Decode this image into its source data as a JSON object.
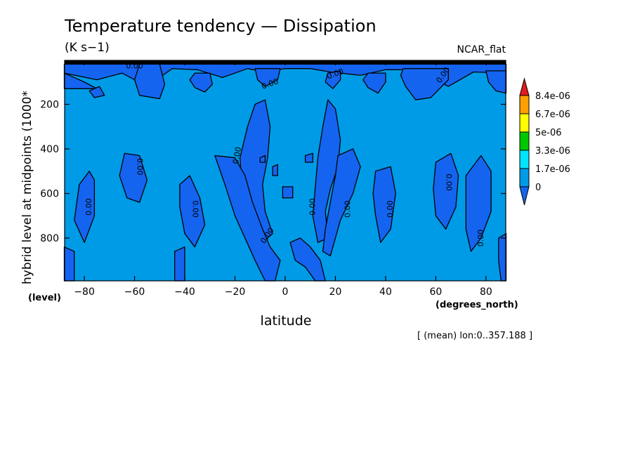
{
  "chart_data": {
    "type": "heatmap",
    "title": "Temperature tendency — Dissipation",
    "units": "(K s−1)",
    "subtitle_right": "NCAR_flat",
    "xlabel": "latitude",
    "xunits": "(degrees_north)",
    "ylabel": "hybrid level at midpoints (1000*",
    "yunits": "(level)",
    "xlim": [
      -87.86,
      87.86
    ],
    "ylim": [
      992,
      3
    ],
    "xticks": [
      -80,
      -60,
      -40,
      -20,
      0,
      20,
      40,
      60,
      80
    ],
    "xtick_labels": [
      "−80",
      "−60",
      "−40",
      "−20",
      "0",
      "20",
      "40",
      "60",
      "80"
    ],
    "yticks": [
      200,
      400,
      600,
      800
    ],
    "ytick_labels": [
      "200",
      "400",
      "600",
      "800"
    ],
    "footnote": "[ (mean) lon:0..357.188 ]",
    "colorbar": {
      "levels": [
        "8.4e-06",
        "6.7e-06",
        "5e-06",
        "3.3e-06",
        "1.7e-06",
        "0"
      ],
      "colors": [
        "#e31a1c",
        "#ff9f00",
        "#ffff00",
        "#00c800",
        "#00e5ff",
        "#009be6",
        "#1464f0"
      ]
    },
    "contour_labels": [
      {
        "text": "0.00",
        "lat": -60,
        "lev": 30,
        "rot": 0
      },
      {
        "text": "0.00",
        "lat": 20,
        "lev": 65,
        "rot": -20
      },
      {
        "text": "0.00",
        "lat": 63,
        "lev": 70,
        "rot": -55
      },
      {
        "text": "0.00",
        "lat": -6,
        "lev": 110,
        "rot": -20
      },
      {
        "text": "0.00",
        "lat": -19,
        "lev": 430,
        "rot": -80
      },
      {
        "text": "0.00",
        "lat": -58,
        "lev": 480,
        "rot": 90
      },
      {
        "text": "0.00",
        "lat": 65,
        "lev": 550,
        "rot": 90
      },
      {
        "text": "0.00",
        "lat": -78,
        "lev": 660,
        "rot": -90
      },
      {
        "text": "0.00",
        "lat": -36,
        "lev": 670,
        "rot": 90
      },
      {
        "text": "0.00",
        "lat": 11,
        "lev": 660,
        "rot": -90
      },
      {
        "text": "0.00",
        "lat": 25,
        "lev": 670,
        "rot": -90
      },
      {
        "text": "0.00",
        "lat": 42,
        "lev": 670,
        "rot": -90
      },
      {
        "text": "0.00",
        "lat": -7,
        "lev": 790,
        "rot": -55
      },
      {
        "text": "0.00",
        "lat": 78,
        "lev": 800,
        "rot": -90
      }
    ],
    "regions": [
      {
        "level": "lt0",
        "pts": [
          [
            -88,
            20
          ],
          [
            88,
            20
          ],
          [
            88,
            60
          ],
          [
            75,
            55
          ],
          [
            65,
            120
          ],
          [
            60,
            90
          ],
          [
            50,
            45
          ],
          [
            40,
            45
          ],
          [
            30,
            70
          ],
          [
            18,
            55
          ],
          [
            10,
            40
          ],
          [
            0,
            40
          ],
          [
            -8,
            55
          ],
          [
            -15,
            40
          ],
          [
            -25,
            80
          ],
          [
            -35,
            45
          ],
          [
            -45,
            40
          ],
          [
            -55,
            120
          ],
          [
            -65,
            60
          ],
          [
            -75,
            90
          ],
          [
            -88,
            60
          ]
        ]
      },
      {
        "level": "lt0",
        "pts": [
          [
            -88,
            60
          ],
          [
            -80,
            100
          ],
          [
            -75,
            130
          ],
          [
            -88,
            130
          ]
        ]
      },
      {
        "level": "lt0",
        "pts": [
          [
            -78,
            140
          ],
          [
            -74,
            120
          ],
          [
            -72,
            160
          ],
          [
            -76,
            170
          ]
        ]
      },
      {
        "level": "lt0",
        "pts": [
          [
            -58,
            20
          ],
          [
            -50,
            20
          ],
          [
            -48,
            110
          ],
          [
            -50,
            175
          ],
          [
            -58,
            160
          ],
          [
            -60,
            90
          ]
        ]
      },
      {
        "level": "lt0",
        "pts": [
          [
            -36,
            60
          ],
          [
            -30,
            60
          ],
          [
            -29,
            110
          ],
          [
            -32,
            145
          ],
          [
            -36,
            125
          ],
          [
            -38,
            90
          ]
        ]
      },
      {
        "level": "lt0",
        "pts": [
          [
            -12,
            40
          ],
          [
            -2,
            40
          ],
          [
            -3,
            90
          ],
          [
            -8,
            120
          ],
          [
            -11,
            90
          ]
        ]
      },
      {
        "level": "lt0",
        "pts": [
          [
            17,
            60
          ],
          [
            22,
            50
          ],
          [
            22,
            90
          ],
          [
            19,
            130
          ],
          [
            16,
            100
          ]
        ]
      },
      {
        "level": "lt0",
        "pts": [
          [
            33,
            60
          ],
          [
            40,
            60
          ],
          [
            40,
            100
          ],
          [
            37,
            150
          ],
          [
            33,
            125
          ],
          [
            31,
            90
          ]
        ]
      },
      {
        "level": "lt0",
        "pts": [
          [
            47,
            40
          ],
          [
            65,
            40
          ],
          [
            65,
            90
          ],
          [
            58,
            170
          ],
          [
            52,
            180
          ],
          [
            48,
            120
          ],
          [
            46,
            70
          ]
        ]
      },
      {
        "level": "lt0",
        "pts": [
          [
            80,
            50
          ],
          [
            88,
            50
          ],
          [
            88,
            150
          ],
          [
            84,
            140
          ],
          [
            81,
            100
          ]
        ]
      },
      {
        "level": "lt0",
        "pts": [
          [
            -18,
            440
          ],
          [
            -15,
            300
          ],
          [
            -12,
            200
          ],
          [
            -8,
            180
          ],
          [
            -6,
            300
          ],
          [
            -7,
            440
          ],
          [
            -9,
            560
          ],
          [
            -8,
            680
          ],
          [
            -5,
            780
          ],
          [
            -9,
            820
          ],
          [
            -13,
            760
          ],
          [
            -17,
            620
          ]
        ]
      },
      {
        "level": "lt0",
        "pts": [
          [
            13,
            440
          ],
          [
            15,
            300
          ],
          [
            17,
            180
          ],
          [
            20,
            220
          ],
          [
            22,
            360
          ],
          [
            21,
            480
          ],
          [
            18,
            580
          ],
          [
            16,
            680
          ],
          [
            17,
            800
          ],
          [
            13,
            820
          ],
          [
            11,
            700
          ]
        ]
      },
      {
        "level": "lt0",
        "pts": [
          [
            -28,
            430
          ],
          [
            -20,
            440
          ],
          [
            -16,
            520
          ],
          [
            -13,
            640
          ],
          [
            -9,
            760
          ],
          [
            -6,
            840
          ],
          [
            -2,
            900
          ],
          [
            -4,
            992
          ],
          [
            -8,
            992
          ],
          [
            -12,
            900
          ],
          [
            -16,
            800
          ],
          [
            -20,
            700
          ],
          [
            -24,
            560
          ]
        ]
      },
      {
        "level": "lt0",
        "pts": [
          [
            2,
            820
          ],
          [
            6,
            800
          ],
          [
            10,
            840
          ],
          [
            14,
            900
          ],
          [
            16,
            992
          ],
          [
            12,
            992
          ],
          [
            8,
            930
          ],
          [
            4,
            900
          ]
        ]
      },
      {
        "level": "lt0",
        "pts": [
          [
            21,
            430
          ],
          [
            27,
            400
          ],
          [
            30,
            480
          ],
          [
            27,
            600
          ],
          [
            22,
            720
          ],
          [
            20,
            800
          ],
          [
            18,
            880
          ],
          [
            15,
            860
          ],
          [
            16,
            760
          ],
          [
            18,
            640
          ],
          [
            20,
            520
          ]
        ]
      },
      {
        "level": "lt0",
        "pts": [
          [
            36,
            500
          ],
          [
            42,
            480
          ],
          [
            44,
            600
          ],
          [
            42,
            760
          ],
          [
            38,
            820
          ],
          [
            36,
            700
          ],
          [
            35,
            600
          ]
        ]
      },
      {
        "level": "lt0",
        "pts": [
          [
            -82,
            560
          ],
          [
            -78,
            500
          ],
          [
            -76,
            540
          ],
          [
            -76,
            700
          ],
          [
            -80,
            820
          ],
          [
            -84,
            720
          ]
        ]
      },
      {
        "level": "lt0",
        "pts": [
          [
            -64,
            420
          ],
          [
            -58,
            430
          ],
          [
            -55,
            540
          ],
          [
            -58,
            640
          ],
          [
            -63,
            620
          ],
          [
            -66,
            520
          ]
        ]
      },
      {
        "level": "lt0",
        "pts": [
          [
            -42,
            560
          ],
          [
            -38,
            520
          ],
          [
            -34,
            620
          ],
          [
            -32,
            740
          ],
          [
            -36,
            840
          ],
          [
            -40,
            780
          ],
          [
            -42,
            660
          ]
        ]
      },
      {
        "level": "lt0",
        "pts": [
          [
            60,
            460
          ],
          [
            66,
            420
          ],
          [
            69,
            520
          ],
          [
            68,
            660
          ],
          [
            64,
            760
          ],
          [
            60,
            700
          ],
          [
            59,
            580
          ]
        ]
      },
      {
        "level": "lt0",
        "pts": [
          [
            72,
            520
          ],
          [
            78,
            430
          ],
          [
            82,
            500
          ],
          [
            82,
            680
          ],
          [
            78,
            800
          ],
          [
            74,
            860
          ],
          [
            72,
            760
          ]
        ]
      },
      {
        "level": "lt0",
        "pts": [
          [
            85,
            800
          ],
          [
            88,
            780
          ],
          [
            88,
            992
          ],
          [
            86,
            992
          ],
          [
            85,
            900
          ]
        ]
      },
      {
        "level": "lt0",
        "pts": [
          [
            -88,
            840
          ],
          [
            -84,
            860
          ],
          [
            -84,
            992
          ],
          [
            -88,
            992
          ]
        ]
      },
      {
        "level": "lt0",
        "pts": [
          [
            -44,
            860
          ],
          [
            -40,
            840
          ],
          [
            -40,
            992
          ],
          [
            -44,
            992
          ]
        ]
      },
      {
        "level": "lt0",
        "pts": [
          [
            -1,
            570
          ],
          [
            3,
            570
          ],
          [
            3,
            620
          ],
          [
            -1,
            620
          ]
        ]
      },
      {
        "level": "lt0",
        "pts": [
          [
            -5,
            480
          ],
          [
            -3,
            470
          ],
          [
            -3,
            520
          ],
          [
            -5,
            520
          ]
        ]
      },
      {
        "level": "lt0",
        "pts": [
          [
            8,
            430
          ],
          [
            11,
            420
          ],
          [
            11,
            460
          ],
          [
            8,
            460
          ]
        ]
      },
      {
        "level": "lt0",
        "pts": [
          [
            -10,
            440
          ],
          [
            -8,
            430
          ],
          [
            -8,
            460
          ],
          [
            -10,
            460
          ]
        ]
      }
    ]
  }
}
